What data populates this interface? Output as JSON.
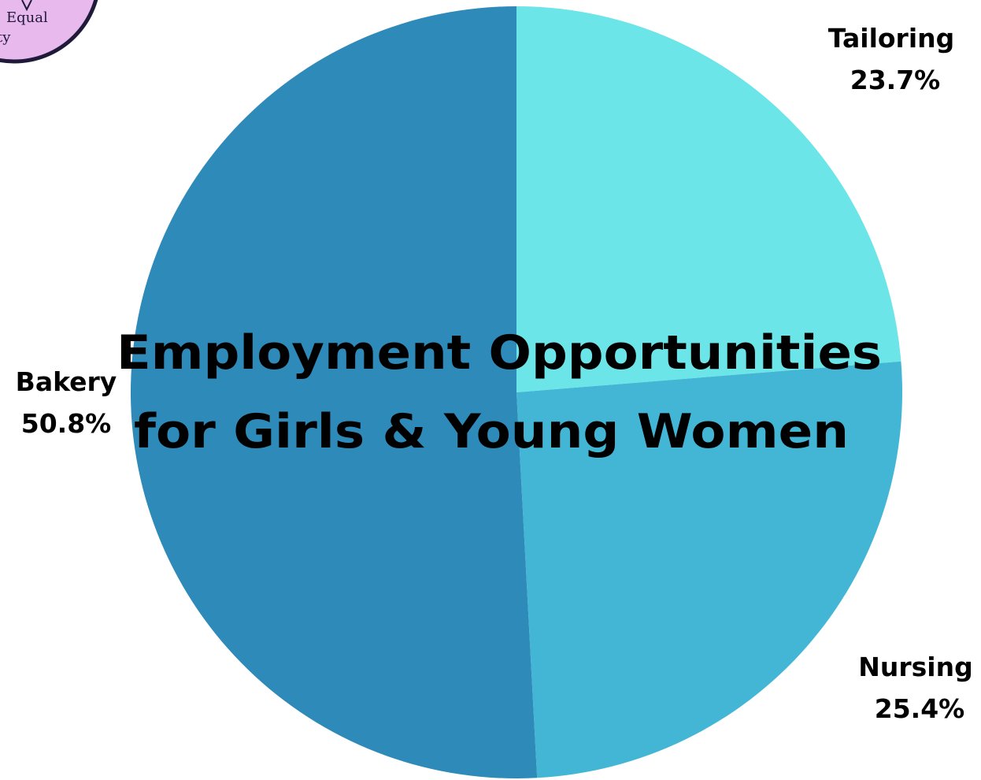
{
  "logo": {
    "text_line1": "Equal",
    "text_line2": "ty",
    "fill_color": "#e8b9ec",
    "ring_color": "#1f1a3a"
  },
  "chart_data": {
    "type": "pie",
    "title_lines": [
      "Employment Opportunities",
      "for  Girls & Young Women"
    ],
    "start_angle_deg": 0,
    "direction": "clockwise",
    "slices": [
      {
        "label": "Tailoring",
        "value": 23.7,
        "value_label": "23.7%",
        "color": "#6be5e8"
      },
      {
        "label": "Nursing",
        "value": 25.4,
        "value_label": "25.4%",
        "color": "#43b6d6"
      },
      {
        "label": "Bakery",
        "value": 50.8,
        "value_label": "50.8%",
        "color": "#2e8ab8"
      }
    ]
  }
}
